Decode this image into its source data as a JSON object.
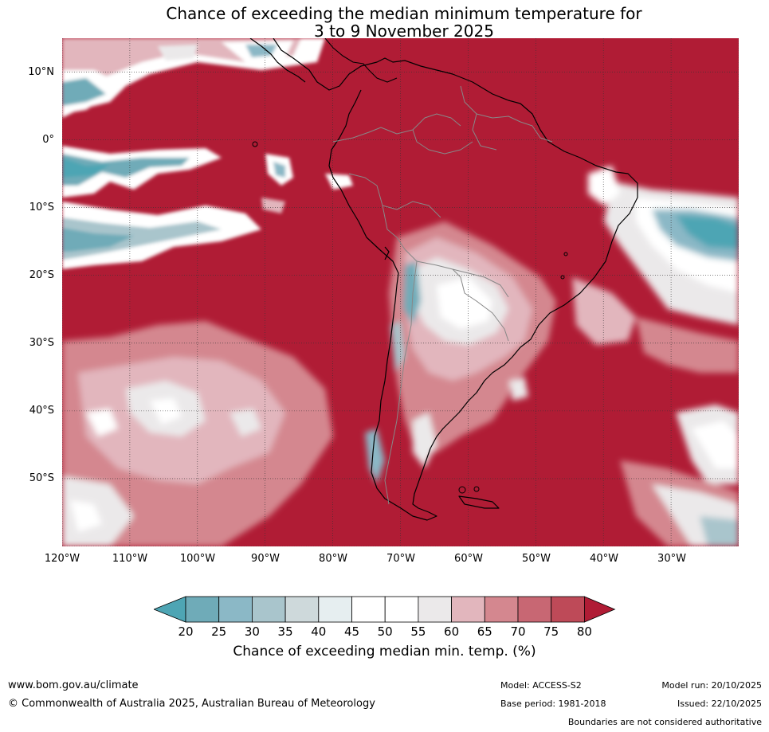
{
  "title": {
    "line1": "Chance of exceeding the median minimum temperature for",
    "line2": "3 to 9 November 2025"
  },
  "map": {
    "region": "South America",
    "lat_labels": [
      "10°N",
      "0°",
      "10°S",
      "20°S",
      "30°S",
      "40°S",
      "50°S"
    ],
    "lon_labels": [
      "120°W",
      "110°W",
      "100°W",
      "90°W",
      "80°W",
      "70°W",
      "60°W",
      "50°W",
      "40°W",
      "30°W"
    ],
    "lat_range": [
      -60,
      15
    ],
    "lon_range": [
      -120,
      -20
    ],
    "grid_step_deg": 10
  },
  "colorbar": {
    "ticks": [
      "20",
      "25",
      "30",
      "35",
      "40",
      "45",
      "50",
      "55",
      "60",
      "65",
      "70",
      "75",
      "80"
    ],
    "label": "Chance of exceeding median min. temp. (%)",
    "colors": [
      "#4ea5b4",
      "#6fabb8",
      "#8bb8c6",
      "#a9c5cc",
      "#ced9db",
      "#e6eef0",
      "#ffffff",
      "#ffffff",
      "#ebe9ea",
      "#e2b6bd",
      "#d4878f",
      "#c86773",
      "#be4a58",
      "#b01c35"
    ]
  },
  "footer": {
    "url": "www.bom.gov.au/climate",
    "copyright": "© Commonwealth of Australia 2025, Australian Bureau of Meteorology",
    "model": "Model: ACCESS-S2",
    "base_period": "Base period: 1981-2018",
    "model_run": "Model run: 20/10/2025",
    "issued": "Issued: 22/10/2025",
    "disclaimer": "Boundaries are not considered authoritative"
  }
}
